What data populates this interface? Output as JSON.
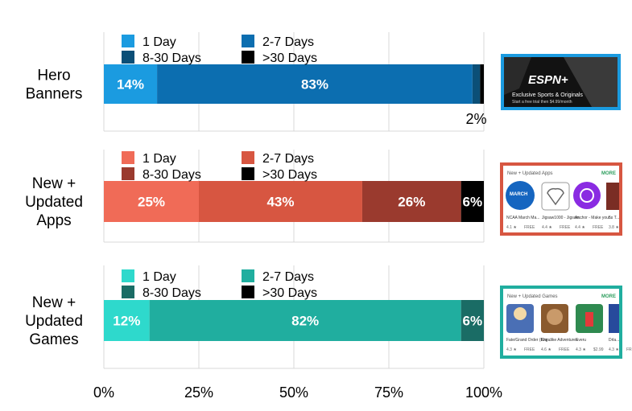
{
  "chart_data": {
    "type": "bar",
    "stacked": true,
    "orientation": "horizontal",
    "categories": [
      {
        "key": "hero",
        "label_lines": [
          "Hero",
          "Banners"
        ]
      },
      {
        "key": "apps",
        "label_lines": [
          "New +",
          "Updated",
          "Apps"
        ]
      },
      {
        "key": "games",
        "label_lines": [
          "New +",
          "Updated",
          "Games"
        ]
      }
    ],
    "legend_labels": [
      "1 Day",
      "2-7 Days",
      "8-30 Days",
      ">30 Days"
    ],
    "series_by_category": {
      "hero": {
        "values": [
          14,
          83,
          2,
          1
        ],
        "labels": [
          "14%",
          "83%",
          "2%",
          ""
        ],
        "colors": [
          "#1B9BE0",
          "#0C6EB0",
          "#0B4F77",
          "#000000"
        ]
      },
      "apps": {
        "values": [
          25,
          43,
          26,
          6
        ],
        "labels": [
          "25%",
          "43%",
          "26%",
          "6%"
        ],
        "colors": [
          "#F06B57",
          "#D75641",
          "#9A3A2E",
          "#000000"
        ]
      },
      "games": {
        "values": [
          12,
          82,
          6,
          0
        ],
        "labels": [
          "12%",
          "82%",
          "6%",
          ""
        ],
        "colors": [
          "#2ED9CC",
          "#20AE9F",
          "#1A6C65",
          "#000000"
        ]
      }
    },
    "x_ticks": [
      "0%",
      "25%",
      "50%",
      "75%",
      "100%"
    ],
    "xlim": [
      0,
      100
    ],
    "grid": true
  },
  "thumbnails": {
    "hero": {
      "brand": "ESPN+",
      "line1": "Exclusive Sports & Originals",
      "line2": "Start a free trial then $4.99/month",
      "border": "#1B9BE0"
    },
    "apps": {
      "title": "New + Updated Apps",
      "more": "MORE",
      "border": "#D75641",
      "items": [
        "NCAA March Ma...",
        "Jigsaw1000 - Jigsaw...",
        "Anchor - Make your...",
        "5x T..."
      ],
      "ratings": [
        "4.1 ★",
        "4.4 ★",
        "4.4 ★",
        "3.8 ★"
      ],
      "prices": [
        "FREE",
        "FREE",
        "FREE",
        ""
      ]
    },
    "games": {
      "title": "New + Updated Games",
      "more": "MORE",
      "border": "#20AE9F",
      "items": [
        "Fate/Grand Order (Eng...",
        "Klondike Adventures",
        "Everu",
        "Drla..."
      ],
      "ratings": [
        "4.3 ★",
        "4.6 ★",
        "4.3 ★",
        "4.3 ★"
      ],
      "prices": [
        "FREE",
        "FREE",
        "$2.99",
        "FREE"
      ]
    }
  }
}
